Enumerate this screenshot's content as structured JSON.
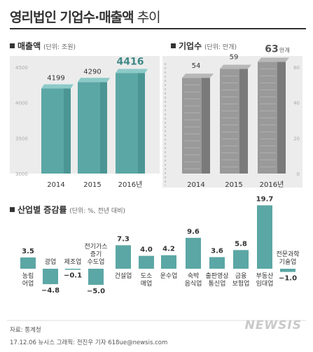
{
  "title_bold": "영리법인 기업수",
  "title_sep": "·",
  "title_bold2": "매출액",
  "title_light": " 추이",
  "sections": {
    "sales": {
      "label": "매출액",
      "unit": "(단위: 조원)"
    },
    "firms": {
      "label": "기업수",
      "unit": "(단위: 만개)"
    },
    "industry": {
      "label": "산업별 증감률",
      "unit": "(단위: %, 전년 대비)"
    }
  },
  "colors": {
    "teal": "#5ba7a5",
    "teal_top": "#8ccac8",
    "teal_dark": "#3e8886",
    "gray_bar": "#9a9a9a",
    "gray_dark": "#7a7a7a",
    "panel_bg": "#ececec"
  },
  "chart_data": [
    {
      "type": "bar",
      "title": "매출액",
      "unit": "단위: 조원",
      "categories": [
        "2014",
        "2015",
        "2016년"
      ],
      "values": [
        4199,
        4290,
        4416
      ],
      "value_labels": [
        "4199",
        "4290",
        "4416"
      ],
      "ylim": [
        3000,
        4500
      ],
      "yticks": [
        3000,
        3500,
        4000,
        4500
      ],
      "grid": false
    },
    {
      "type": "bar",
      "title": "기업수",
      "unit": "단위: 만개",
      "categories": [
        "2014",
        "2015",
        "2016년"
      ],
      "values": [
        54,
        59,
        63
      ],
      "value_labels": [
        "54",
        "59",
        "63"
      ],
      "last_label_suffix": "만개",
      "ylim": [
        0,
        60
      ],
      "yticks": [
        0,
        20,
        40,
        60
      ],
      "grid": false
    },
    {
      "type": "bar",
      "title": "산업별 증감률",
      "unit": "단위: %, 전년 대비",
      "categories": [
        "농림\n어업",
        "광업",
        "제조업",
        "전기가스\n증기\n수도업",
        "건설업",
        "도소\n매업",
        "운수업",
        "숙박\n음식업",
        "출판영상\n통신업",
        "금융\n보험업",
        "부동산\n임대업",
        "전문과학\n기술업"
      ],
      "values": [
        3.5,
        -4.8,
        -0.1,
        -5.0,
        7.3,
        4.0,
        4.2,
        9.6,
        3.6,
        5.8,
        19.7,
        -1.0
      ],
      "value_labels": [
        "3.5",
        "−4.8",
        "−0.1",
        "−5.0",
        "7.3",
        "4.0",
        "4.2",
        "9.6",
        "3.6",
        "5.8",
        "19.7",
        "−1.0"
      ]
    }
  ],
  "footer": {
    "source": "자료: 통계청",
    "credit": "17.12.06 뉴시스 그래픽: 전진우 기자 618ue@newsis.com",
    "logo": "NEWSIS"
  }
}
